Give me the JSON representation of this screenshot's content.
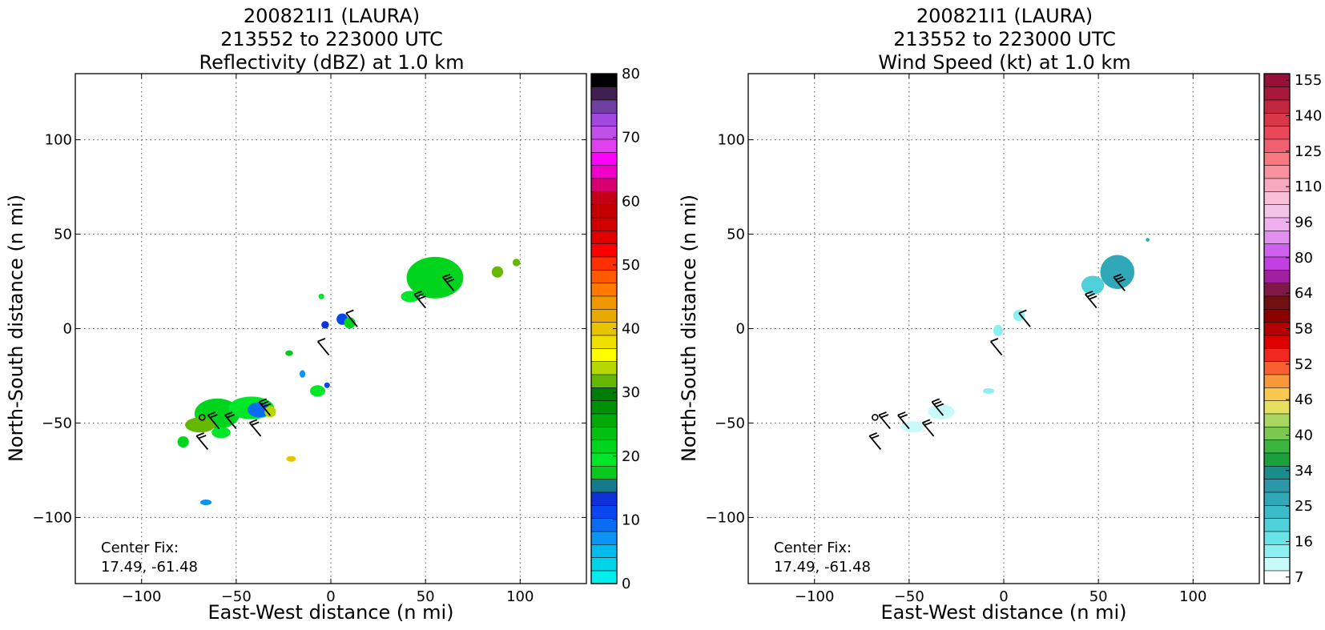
{
  "charts": [
    {
      "title_line1": "200821I1 (LAURA)",
      "title_line2": "213552 to 223000 UTC",
      "title_line3": "Reflectivity (dBZ) at 1.0 km",
      "center_fix_label": "Center Fix:",
      "center_fix_value": "17.49, -61.48"
    },
    {
      "title_line1": "200821I1 (LAURA)",
      "title_line2": "213552 to 223000 UTC",
      "title_line3": "Wind Speed (kt) at 1.0 km",
      "center_fix_label": "Center Fix:",
      "center_fix_value": "17.49, -61.48"
    }
  ],
  "chart_data": [
    {
      "type": "heatmap",
      "title": "200821I1 (LAURA) 213552 to 223000 UTC Reflectivity (dBZ) at 1.0 km",
      "xlabel": "East-West distance (n mi)",
      "ylabel": "North-South distance (n mi)",
      "xlim": [
        -135,
        135
      ],
      "ylim": [
        -135,
        135
      ],
      "xticks": [
        -100,
        -50,
        0,
        50,
        100
      ],
      "yticks": [
        -100,
        -50,
        0,
        50,
        100
      ],
      "xtick_labels": [
        "−100",
        "−50",
        "0",
        "50",
        "100"
      ],
      "ytick_labels": [
        "−100",
        "−50",
        "0",
        "50",
        "100"
      ],
      "grid": true,
      "center_fix": [
        17.49,
        -61.48
      ],
      "colorbar": {
        "range": [
          0,
          80
        ],
        "ticks": [
          "0",
          "10",
          "20",
          "30",
          "40",
          "50",
          "60",
          "70",
          "80"
        ],
        "colors": [
          "#00eeee",
          "#00d4e8",
          "#00bcee",
          "#0a94f4",
          "#0a6cf2",
          "#0a46f0",
          "#1030d8",
          "#157a8c",
          "#08c81e",
          "#00e628",
          "#00d41c",
          "#00c010",
          "#00a808",
          "#009008",
          "#007c08",
          "#64b800",
          "#b4d800",
          "#ffff00",
          "#f0e000",
          "#e8c400",
          "#e8aa00",
          "#f09800",
          "#ff7800",
          "#ff5a00",
          "#ff3000",
          "#ff0000",
          "#e00000",
          "#d00000",
          "#c40000",
          "#c40018",
          "#d80070",
          "#f000c8",
          "#ff00ff",
          "#e040ee",
          "#c050e8",
          "#a048e0",
          "#7040a0",
          "#402050",
          "#000000"
        ]
      },
      "regions": [
        {
          "x": 55,
          "y": 27,
          "rx": 15,
          "ry": 11,
          "value": 22
        },
        {
          "x": 42,
          "y": 17,
          "rx": 5,
          "ry": 3,
          "value": 20
        },
        {
          "x": 88,
          "y": 30,
          "rx": 3,
          "ry": 3,
          "value": 32
        },
        {
          "x": 98,
          "y": 35,
          "rx": 2,
          "ry": 2,
          "value": 32
        },
        {
          "x": 6,
          "y": 5,
          "rx": 3,
          "ry": 3,
          "value": 12
        },
        {
          "x": 10,
          "y": 3,
          "rx": 3,
          "ry": 3,
          "value": 22
        },
        {
          "x": -5,
          "y": 17,
          "rx": 1.5,
          "ry": 1.5,
          "value": 20
        },
        {
          "x": -3,
          "y": 2,
          "rx": 2,
          "ry": 2,
          "value": 14
        },
        {
          "x": -22,
          "y": -13,
          "rx": 2,
          "ry": 1.5,
          "value": 18
        },
        {
          "x": -15,
          "y": -24,
          "rx": 1.5,
          "ry": 2,
          "value": 8
        },
        {
          "x": -7,
          "y": -33,
          "rx": 4,
          "ry": 3,
          "value": 20
        },
        {
          "x": -2,
          "y": -30,
          "rx": 1.5,
          "ry": 1.5,
          "value": 12
        },
        {
          "x": -60,
          "y": -45,
          "rx": 12,
          "ry": 8,
          "value": 22
        },
        {
          "x": -42,
          "y": -42,
          "rx": 12,
          "ry": 6,
          "value": 20
        },
        {
          "x": -38,
          "y": -43,
          "rx": 6,
          "ry": 4,
          "value": 10
        },
        {
          "x": -69,
          "y": -51,
          "rx": 8,
          "ry": 4,
          "value": 32
        },
        {
          "x": -58,
          "y": -55,
          "rx": 5,
          "ry": 3,
          "value": 20
        },
        {
          "x": -32,
          "y": -44,
          "rx": 3,
          "ry": 3,
          "value": 34
        },
        {
          "x": -78,
          "y": -60,
          "rx": 3,
          "ry": 3,
          "value": 22
        },
        {
          "x": -21,
          "y": -69,
          "rx": 2.5,
          "ry": 1.5,
          "value": 40
        },
        {
          "x": -66,
          "y": -92,
          "rx": 3,
          "ry": 1.5,
          "value": 8
        }
      ],
      "barbs": [
        {
          "x": 50,
          "y": 11,
          "speed": 29
        },
        {
          "x": 65,
          "y": 20,
          "speed": 29
        },
        {
          "x": 14,
          "y": 1,
          "speed": 10
        },
        {
          "x": -1,
          "y": -14,
          "speed": 10
        },
        {
          "x": -32,
          "y": -46,
          "speed": 25
        },
        {
          "x": -37,
          "y": -57,
          "speed": 20
        },
        {
          "x": -50,
          "y": -53,
          "speed": 20
        },
        {
          "x": -59,
          "y": -53,
          "speed": 20
        },
        {
          "x": -65,
          "y": -64,
          "speed": 20
        }
      ]
    },
    {
      "type": "heatmap",
      "title": "200821I1 (LAURA) 213552 to 223000 UTC Wind Speed (kt) at 1.0 km",
      "xlabel": "East-West distance (n mi)",
      "ylabel": "North-South distance (n mi)",
      "xlim": [
        -135,
        135
      ],
      "ylim": [
        -135,
        135
      ],
      "xticks": [
        -100,
        -50,
        0,
        50,
        100
      ],
      "yticks": [
        -100,
        -50,
        0,
        50,
        100
      ],
      "xtick_labels": [
        "−100",
        "−50",
        "0",
        "50",
        "100"
      ],
      "ytick_labels": [
        "−100",
        "−50",
        "0",
        "50",
        "100"
      ],
      "grid": true,
      "center_fix": [
        17.49,
        -61.48
      ],
      "colorbar": {
        "range": [
          5,
          160
        ],
        "ticks": [
          "7",
          "16",
          "25",
          "34",
          "40",
          "46",
          "52",
          "58",
          "64",
          "80",
          "96",
          "110",
          "125",
          "140",
          "155"
        ],
        "colors": [
          "#ffffff",
          "#c8fafa",
          "#8cf0f0",
          "#68e4e8",
          "#50d0d8",
          "#3cbcc8",
          "#30a8b8",
          "#2a98a8",
          "#1a8c8c",
          "#1aa03c",
          "#3cb440",
          "#7ac850",
          "#a8d860",
          "#e4e060",
          "#f8c850",
          "#f89838",
          "#f86030",
          "#f02820",
          "#dc0000",
          "#b40000",
          "#8c0000",
          "#701010",
          "#801848",
          "#a020a0",
          "#c040e0",
          "#d060f0",
          "#e090f0",
          "#f0b0f0",
          "#f4c4e8",
          "#f8c0d8",
          "#f8a8c0",
          "#f890a0",
          "#f87880",
          "#f06070",
          "#e84858",
          "#d83848",
          "#c02840",
          "#a81838",
          "#981038"
        ]
      },
      "regions": [
        {
          "x": 60,
          "y": 30,
          "rx": 9,
          "ry": 9,
          "value": 30
        },
        {
          "x": 47,
          "y": 23,
          "rx": 6,
          "ry": 5,
          "value": 22
        },
        {
          "x": 76,
          "y": 47,
          "rx": 1,
          "ry": 1,
          "value": 30
        },
        {
          "x": 8,
          "y": 7,
          "rx": 3,
          "ry": 3,
          "value": 14
        },
        {
          "x": -3,
          "y": -1,
          "rx": 2.5,
          "ry": 3,
          "value": 14
        },
        {
          "x": -8,
          "y": -33,
          "rx": 3,
          "ry": 1.5,
          "value": 14
        },
        {
          "x": -33,
          "y": -44,
          "rx": 7,
          "ry": 4,
          "value": 10
        },
        {
          "x": -48,
          "y": -52,
          "rx": 6,
          "ry": 3,
          "value": 10
        }
      ],
      "barbs": [
        {
          "x": 49,
          "y": 11,
          "speed": 29
        },
        {
          "x": 64,
          "y": 20,
          "speed": 29
        },
        {
          "x": 14,
          "y": 1,
          "speed": 10
        },
        {
          "x": -1,
          "y": -14,
          "speed": 10
        },
        {
          "x": -32,
          "y": -46,
          "speed": 25
        },
        {
          "x": -37,
          "y": -57,
          "speed": 20
        },
        {
          "x": -50,
          "y": -53,
          "speed": 20
        },
        {
          "x": -60,
          "y": -53,
          "speed": 20
        },
        {
          "x": -65,
          "y": -64,
          "speed": 20
        }
      ]
    }
  ]
}
